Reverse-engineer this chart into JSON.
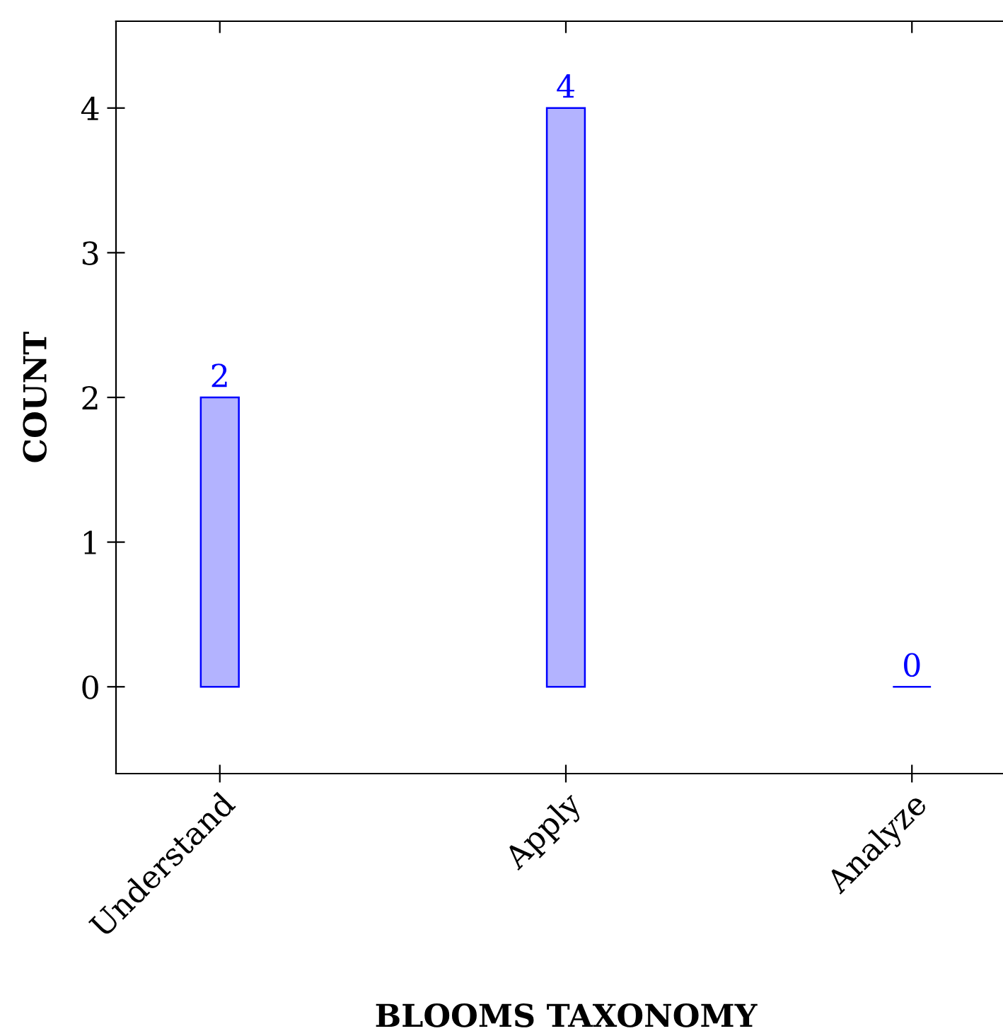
{
  "chart_data": {
    "type": "bar",
    "xlabel": "BLOOMS TAXONOMY",
    "ylabel": "COUNT",
    "categories": [
      "Understand",
      "Apply",
      "Analyze"
    ],
    "series": [
      {
        "colors": [
          "#b3b3ff",
          "#b3b3ff",
          "#0000ff"
        ],
        "values": [
          2,
          4,
          0
        ]
      }
    ],
    "ylim": [
      -0.6,
      4.6
    ],
    "yticks": [
      0,
      1,
      2,
      3,
      4
    ],
    "data_labels": true,
    "grid": false,
    "legend": false
  }
}
